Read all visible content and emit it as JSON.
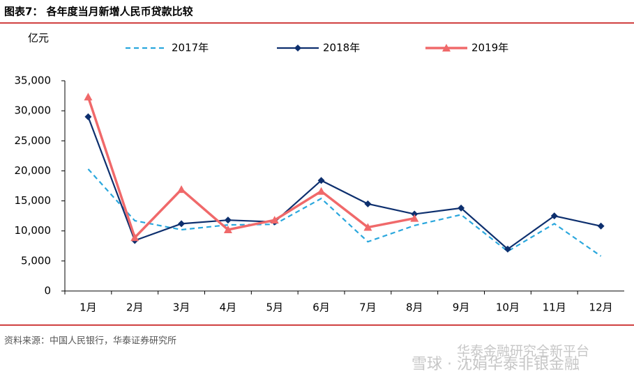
{
  "chart_data": {
    "type": "line",
    "title": "图表7： 各年度当月新增人民币贷款比较",
    "y_unit": "亿元",
    "source": "资料来源：中国人民银行，华泰证券研究所",
    "watermark": [
      "华泰金融研究全新平台",
      "雪球 · 沈娟华泰非银金融"
    ],
    "categories": [
      "1月",
      "2月",
      "3月",
      "4月",
      "5月",
      "6月",
      "7月",
      "8月",
      "9月",
      "10月",
      "11月",
      "12月"
    ],
    "series": [
      {
        "name": "2017年",
        "color": "#2aa7dd",
        "dash": true,
        "marker": "none",
        "values": [
          20300,
          11700,
          10200,
          11000,
          11100,
          15400,
          8200,
          10900,
          12700,
          6600,
          11200,
          5800
        ]
      },
      {
        "name": "2018年",
        "color": "#0d2f6e",
        "dash": false,
        "marker": "diamond",
        "values": [
          29000,
          8400,
          11200,
          11800,
          11500,
          18400,
          14500,
          12800,
          13800,
          6970,
          12500,
          10800
        ]
      },
      {
        "name": "2019年",
        "color": "#f0696a",
        "dash": false,
        "marker": "triangle",
        "values": [
          32300,
          8900,
          16900,
          10200,
          11800,
          16600,
          10600,
          12100,
          null,
          null,
          null,
          null
        ]
      }
    ],
    "ylim": [
      0,
      35000
    ],
    "yticks": [
      0,
      {
        "value": 5000,
        "label": "5,000"
      },
      {
        "value": 10000,
        "label": "10,000"
      },
      {
        "value": 15000,
        "label": "15,000"
      },
      {
        "value": 20000,
        "label": "20,000"
      },
      {
        "value": 25000,
        "label": "25,000"
      },
      {
        "value": 30000,
        "label": "30,000"
      },
      {
        "value": 35000,
        "label": "35,000"
      }
    ],
    "grid": false,
    "legend": "top"
  }
}
